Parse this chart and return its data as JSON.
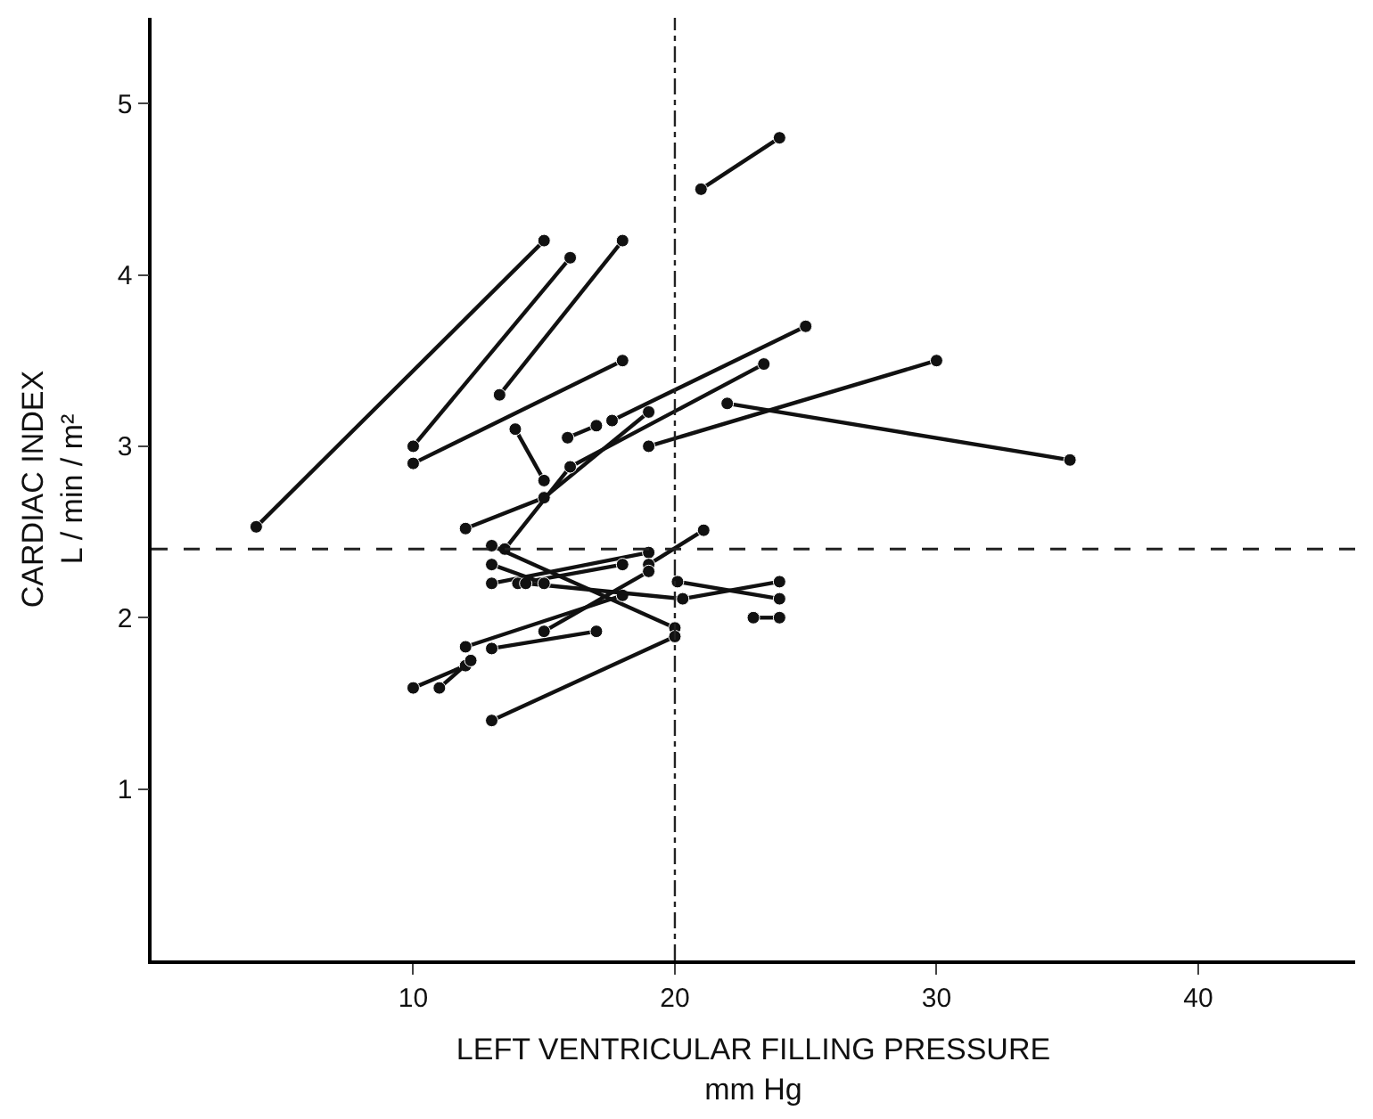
{
  "chart_data": {
    "type": "line",
    "xlabel": "LEFT VENTRICULAR FILLING PRESSURE\nmm Hg",
    "ylabel": "CARDIAC INDEX\nL / min / m²",
    "series": [
      {
        "color": "#111111",
        "x": [
          4,
          15
        ],
        "values": [
          2.53,
          4.2
        ]
      },
      {
        "color": "#111111",
        "x": [
          10,
          16
        ],
        "values": [
          3.0,
          4.1
        ]
      },
      {
        "color": "#111111",
        "x": [
          13.3,
          18
        ],
        "values": [
          3.3,
          4.2
        ]
      },
      {
        "color": "#111111",
        "x": [
          10,
          18
        ],
        "values": [
          2.9,
          3.5
        ]
      },
      {
        "color": "#111111",
        "x": [
          21,
          24
        ],
        "values": [
          4.5,
          4.8
        ]
      },
      {
        "color": "#111111",
        "x": [
          13.9,
          15
        ],
        "values": [
          3.1,
          2.8
        ]
      },
      {
        "color": "#111111",
        "x": [
          15,
          19
        ],
        "values": [
          2.7,
          3.2
        ]
      },
      {
        "color": "#111111",
        "x": [
          12,
          15
        ],
        "values": [
          2.52,
          2.7
        ]
      },
      {
        "color": "#111111",
        "x": [
          15.9,
          17
        ],
        "values": [
          3.05,
          3.12
        ]
      },
      {
        "color": "#111111",
        "x": [
          19,
          30
        ],
        "values": [
          3.0,
          3.5
        ]
      },
      {
        "color": "#111111",
        "x": [
          22,
          35.1
        ],
        "values": [
          3.25,
          2.92
        ]
      },
      {
        "color": "#111111",
        "x": [
          13.5,
          16,
          23.4
        ],
        "values": [
          2.4,
          2.88,
          3.48
        ]
      },
      {
        "color": "#111111",
        "x": [
          17.6,
          25
        ],
        "values": [
          3.15,
          3.7
        ]
      },
      {
        "color": "#111111",
        "x": [
          13,
          20
        ],
        "values": [
          2.42,
          1.94
        ]
      },
      {
        "color": "#111111",
        "x": [
          13,
          20
        ],
        "values": [
          1.4,
          1.89
        ]
      },
      {
        "color": "#111111",
        "x": [
          13,
          17
        ],
        "values": [
          1.82,
          1.92
        ]
      },
      {
        "color": "#111111",
        "x": [
          12,
          18
        ],
        "values": [
          1.83,
          2.13
        ]
      },
      {
        "color": "#111111",
        "x": [
          10,
          12
        ],
        "values": [
          1.59,
          1.72
        ]
      },
      {
        "color": "#111111",
        "x": [
          11,
          12.2
        ],
        "values": [
          1.59,
          1.75
        ]
      },
      {
        "color": "#111111",
        "x": [
          13,
          19
        ],
        "values": [
          2.2,
          2.38
        ]
      },
      {
        "color": "#111111",
        "x": [
          14,
          18
        ],
        "values": [
          2.2,
          2.31
        ]
      },
      {
        "color": "#111111",
        "x": [
          14.3,
          20.3
        ],
        "values": [
          2.2,
          2.11
        ]
      },
      {
        "color": "#111111",
        "x": [
          19,
          21.1
        ],
        "values": [
          2.31,
          2.51
        ]
      },
      {
        "color": "#111111",
        "x": [
          20.1,
          24
        ],
        "values": [
          2.21,
          2.11
        ]
      },
      {
        "color": "#111111",
        "x": [
          20.3,
          24
        ],
        "values": [
          2.11,
          2.21
        ]
      },
      {
        "color": "#111111",
        "x": [
          23,
          24
        ],
        "values": [
          2.0,
          2.0
        ]
      },
      {
        "color": "#111111",
        "x": [
          13,
          15
        ],
        "values": [
          2.31,
          2.2
        ]
      },
      {
        "color": "#111111",
        "x": [
          15,
          19
        ],
        "values": [
          1.92,
          2.27
        ]
      }
    ],
    "xlim": [
      0,
      46
    ],
    "xticks": [
      10,
      20,
      30,
      40
    ],
    "ylim": [
      0,
      5.5
    ],
    "yticks": [
      1,
      2,
      3,
      4,
      5
    ],
    "ref_lines": [
      {
        "axis": "y",
        "value": 2.4,
        "line_style": "dashed"
      },
      {
        "axis": "x",
        "value": 20,
        "line_style": "dotted"
      }
    ],
    "marker": "circle",
    "line_style": "solid",
    "legend": false
  }
}
